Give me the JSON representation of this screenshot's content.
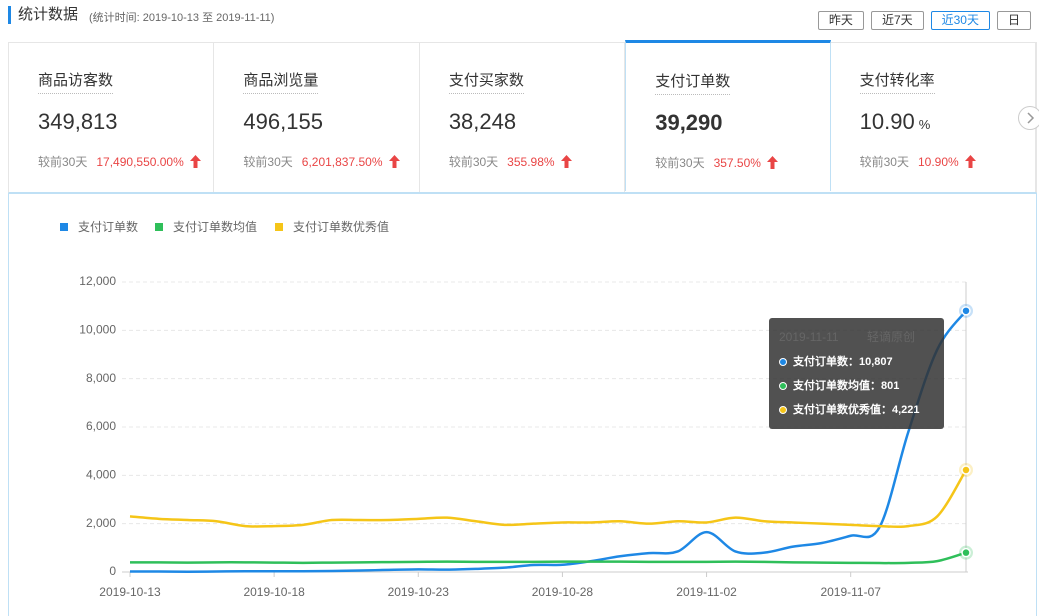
{
  "header": {
    "title": "统计数据",
    "subtitle": "(统计时间: 2019-10-13 至 2019-11-11)",
    "buttons": [
      "昨天",
      "近7天",
      "近30天",
      "日"
    ]
  },
  "cards": [
    {
      "label": "商品访客数",
      "value": "349,813",
      "compare": "较前30天",
      "change": "17,490,550.00%"
    },
    {
      "label": "商品浏览量",
      "value": "496,155",
      "compare": "较前30天",
      "change": "6,201,837.50%"
    },
    {
      "label": "支付买家数",
      "value": "38,248",
      "compare": "较前30天",
      "change": "355.98%"
    },
    {
      "label": "支付订单数",
      "value": "39,290",
      "compare": "较前30天",
      "change": "357.50%"
    },
    {
      "label": "支付转化率",
      "value": "10.90",
      "unit": "%",
      "compare": "较前30天",
      "change": "10.90%"
    }
  ],
  "chart_data": {
    "type": "line",
    "x": [
      "2019-10-13",
      "2019-10-14",
      "2019-10-15",
      "2019-10-16",
      "2019-10-17",
      "2019-10-18",
      "2019-10-19",
      "2019-10-20",
      "2019-10-21",
      "2019-10-22",
      "2019-10-23",
      "2019-10-24",
      "2019-10-25",
      "2019-10-26",
      "2019-10-27",
      "2019-10-28",
      "2019-10-29",
      "2019-10-30",
      "2019-10-31",
      "2019-11-01",
      "2019-11-02",
      "2019-11-03",
      "2019-11-04",
      "2019-11-05",
      "2019-11-06",
      "2019-11-07",
      "2019-11-08",
      "2019-11-09",
      "2019-11-10",
      "2019-11-11"
    ],
    "series": [
      {
        "name": "支付订单数",
        "color": "#1e88e5",
        "values": [
          20,
          20,
          10,
          20,
          30,
          30,
          30,
          40,
          60,
          90,
          110,
          100,
          130,
          180,
          290,
          300,
          450,
          650,
          780,
          850,
          1650,
          850,
          800,
          1050,
          1200,
          1500,
          1850,
          5800,
          9200,
          10807
        ]
      },
      {
        "name": "支付订单数均值",
        "color": "#2fbf5a",
        "values": [
          400,
          400,
          390,
          400,
          400,
          390,
          380,
          390,
          400,
          410,
          420,
          430,
          420,
          420,
          420,
          430,
          430,
          430,
          420,
          420,
          420,
          430,
          420,
          400,
          390,
          380,
          370,
          380,
          450,
          801
        ]
      },
      {
        "name": "支付订单数优秀值",
        "color": "#f5c518",
        "values": [
          2300,
          2200,
          2150,
          2100,
          1900,
          1900,
          1950,
          2150,
          2150,
          2150,
          2200,
          2250,
          2100,
          1950,
          2000,
          2050,
          2050,
          2100,
          2000,
          2100,
          2050,
          2250,
          2100,
          2050,
          2000,
          1950,
          1900,
          1900,
          2300,
          4221
        ]
      }
    ],
    "ylim": [
      0,
      12000
    ],
    "yticks": [
      0,
      {
        "value": 2000,
        "label": "2,000"
      },
      {
        "value": 4000,
        "label": "4,000"
      },
      {
        "value": 6000,
        "label": "6,000"
      },
      {
        "value": 8000,
        "label": "8,000"
      },
      {
        "value": 10000,
        "label": "10,000"
      },
      {
        "value": 12000,
        "label": "12,000"
      }
    ],
    "xtick_every": 5,
    "grid": true,
    "legend": "top-left",
    "tooltip": {
      "note": "轻谪原创",
      "separator": "：",
      "value_labels": [
        "10,807",
        "801",
        "4,221"
      ]
    }
  }
}
